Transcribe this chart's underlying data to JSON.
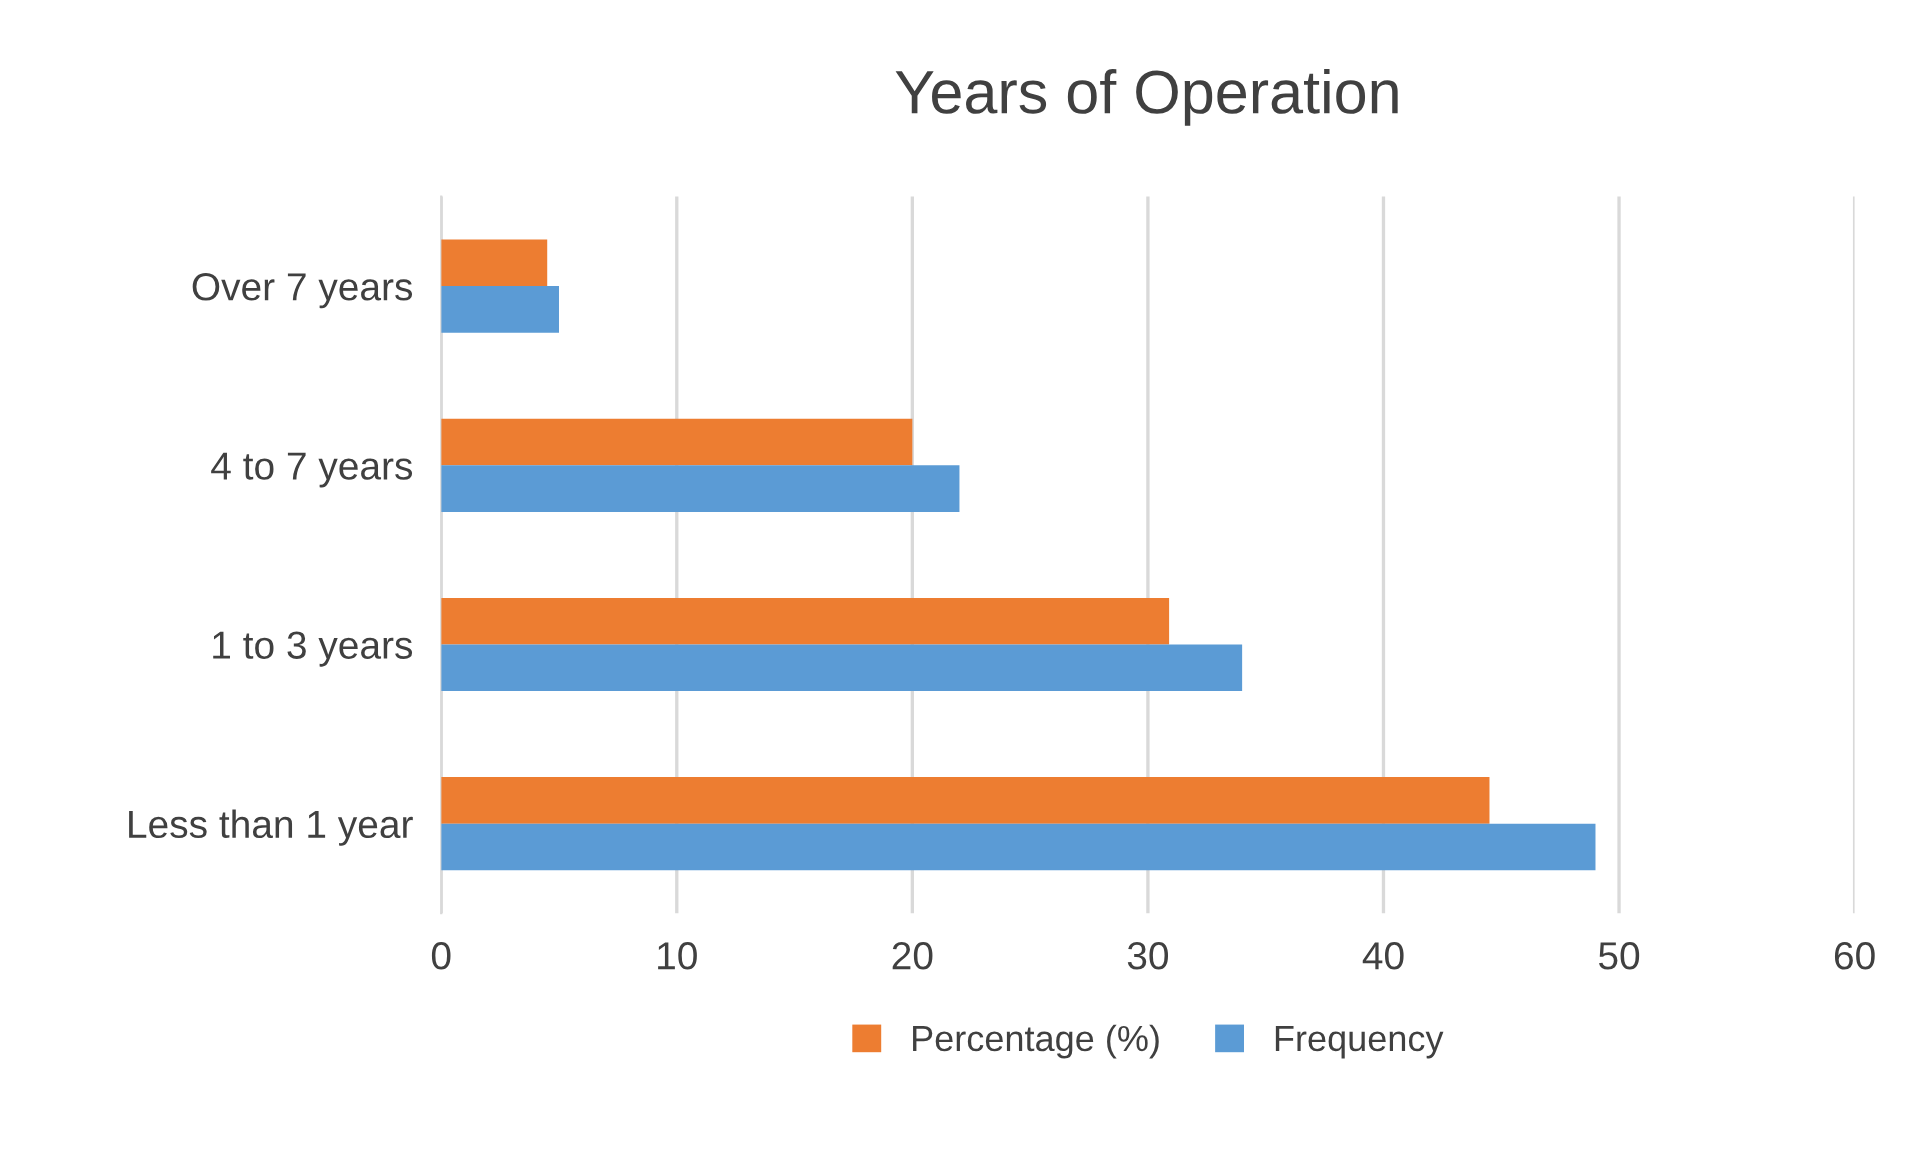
{
  "chart_data": {
    "type": "bar",
    "orientation": "horizontal",
    "title": "Years of Operation",
    "categories": [
      "Over 7 years",
      "4 to 7 years",
      "1 to 3 years",
      "Less than 1 year"
    ],
    "series": [
      {
        "name": "Percentage (%)",
        "color": "#ed7d31",
        "values": [
          4.5,
          20,
          30.9,
          44.5
        ]
      },
      {
        "name": "Frequency",
        "color": "#5b9bd5",
        "values": [
          5,
          22,
          34,
          49
        ]
      }
    ],
    "xlim": [
      0,
      60
    ],
    "xticks": [
      0,
      10,
      20,
      30,
      40,
      50,
      60
    ],
    "grid": "x",
    "legend": "bottom"
  }
}
